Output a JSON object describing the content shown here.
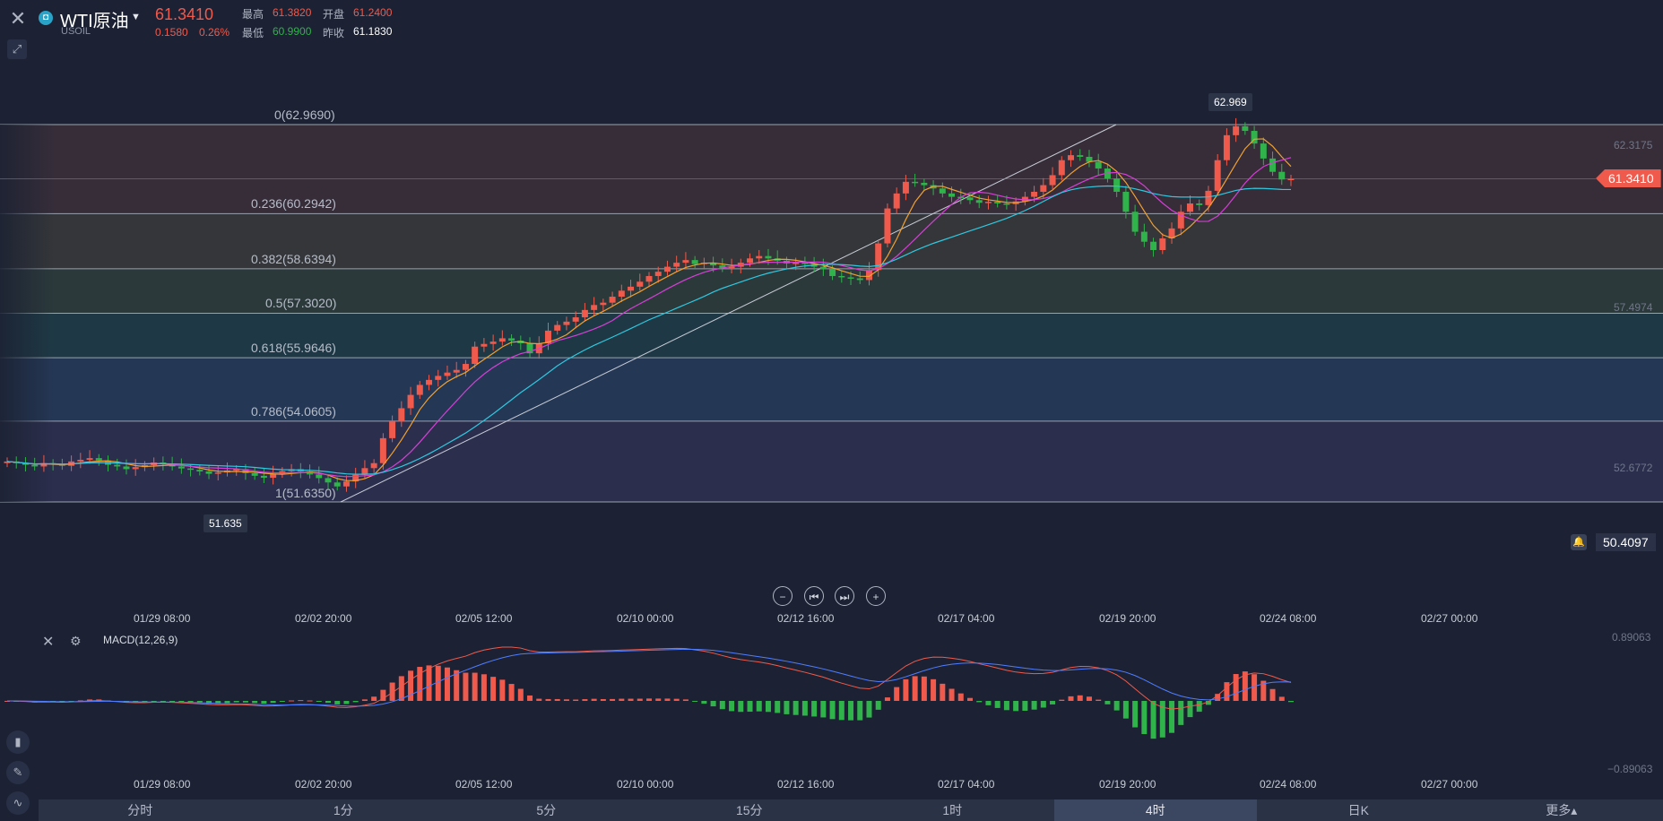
{
  "header": {
    "close_icon": "close-icon",
    "tool_icon": "pin-icon",
    "symbol_name": "WTI原油",
    "symbol_code": "USOIL",
    "price": "61.3410",
    "change": "0.1580",
    "change_pct": "0.26%",
    "quote": {
      "high_label": "最高",
      "high": "61.3820",
      "open_label": "开盘",
      "open": "61.2400",
      "low_label": "最低",
      "low": "60.9900",
      "prev_label": "昨收",
      "prev": "61.1830"
    }
  },
  "fib_levels": [
    {
      "label": "0(62.9690)",
      "value": 62.969
    },
    {
      "label": "0.236(60.2942)",
      "value": 60.2942
    },
    {
      "label": "0.382(58.6394)",
      "value": 58.6394
    },
    {
      "label": "0.5(57.3020)",
      "value": 57.302
    },
    {
      "label": "0.618(55.9646)",
      "value": 55.9646
    },
    {
      "label": "0.786(54.0605)",
      "value": 54.0605
    },
    {
      "label": "1(51.6350)",
      "value": 51.635
    }
  ],
  "right_axis": [
    "62.3175",
    "57.4974",
    "52.6772"
  ],
  "current_price_tag": "61.3410",
  "high_marker": "62.969",
  "low_marker": "51.635",
  "alarm_value": "50.4097",
  "time_axis": [
    "01/29 08:00",
    "02/02 20:00",
    "02/05 12:00",
    "02/10 00:00",
    "02/12 16:00",
    "02/17 04:00",
    "02/19 20:00",
    "02/24 08:00",
    "02/27 00:00"
  ],
  "nav_buttons": {
    "zoom_out": "−",
    "prev": "⏮",
    "next": "⏭",
    "zoom_in": "+"
  },
  "macd": {
    "title": "MACD(12,26,9)",
    "axis_top": "0.89063",
    "axis_bottom": "−0.89063"
  },
  "timeframes": [
    "分时",
    "1分",
    "5分",
    "15分",
    "1时",
    "4时",
    "日K",
    "更多▴"
  ],
  "active_timeframe": 5,
  "chart_data": {
    "type": "candlestick",
    "symbol": "USOIL",
    "ylim": [
      51.635,
      62.969
    ],
    "candles": [
      52.85,
      52.8,
      52.75,
      52.7,
      52.8,
      52.78,
      52.72,
      52.85,
      52.9,
      52.95,
      52.88,
      52.75,
      52.7,
      52.62,
      52.68,
      52.74,
      52.82,
      52.78,
      52.7,
      52.64,
      52.6,
      52.55,
      52.48,
      52.52,
      52.58,
      52.62,
      52.5,
      52.42,
      52.36,
      52.48,
      52.56,
      52.62,
      52.55,
      52.46,
      52.35,
      52.22,
      52.1,
      52.25,
      52.45,
      52.65,
      52.8,
      53.55,
      54.05,
      54.45,
      54.85,
      55.15,
      55.3,
      55.42,
      55.52,
      55.6,
      55.78,
      56.3,
      56.38,
      56.45,
      56.55,
      56.48,
      56.4,
      56.1,
      56.4,
      56.78,
      56.95,
      57.05,
      57.18,
      57.4,
      57.55,
      57.62,
      57.8,
      57.98,
      58.1,
      58.25,
      58.42,
      58.55,
      58.7,
      58.82,
      58.9,
      58.78,
      58.82,
      58.74,
      58.66,
      58.7,
      58.82,
      58.95,
      59.02,
      58.95,
      58.88,
      58.8,
      58.82,
      58.78,
      58.7,
      58.62,
      58.42,
      58.38,
      58.35,
      58.3,
      58.6,
      59.4,
      60.45,
      60.9,
      61.25,
      61.22,
      61.15,
      61.05,
      60.9,
      60.8,
      60.78,
      60.7,
      60.62,
      60.65,
      60.6,
      60.58,
      60.66,
      60.8,
      60.95,
      61.15,
      61.45,
      61.9,
      62.05,
      62.0,
      61.85,
      61.65,
      61.35,
      60.95,
      60.35,
      59.75,
      59.45,
      59.2,
      59.55,
      59.85,
      60.35,
      60.6,
      60.55,
      60.98,
      61.9,
      62.65,
      62.92,
      62.78,
      62.4,
      61.95,
      61.55,
      61.32,
      61.34
    ],
    "ma_series": [
      "MA5",
      "MA10",
      "MA20"
    ],
    "macd_scale": [
      -0.89063,
      0.89063
    ]
  }
}
